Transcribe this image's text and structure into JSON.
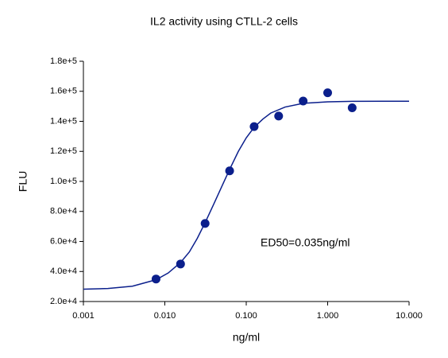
{
  "chart_data": {
    "type": "scatter",
    "title": "IL2 activity using CTLL-2 cells",
    "x_label": "ng/ml",
    "y_label": "FLU",
    "annotation": "ED50=0.035ng/ml",
    "xscale": "log",
    "xlim": [
      0.001,
      10
    ],
    "ylim": [
      20000,
      180000
    ],
    "xticks": [
      0.001,
      {
        "value": 0.01,
        "label": "0.010"
      },
      {
        "value": 0.1,
        "label": "0.100"
      },
      {
        "value": 1,
        "label": "1.000"
      },
      {
        "value": 10,
        "label": "10.000"
      }
    ],
    "yticks": [
      {
        "value": 20000,
        "label": "2.0e+4"
      },
      {
        "value": 40000,
        "label": "4.0e+4"
      },
      {
        "value": 60000,
        "label": "6.0e+4"
      },
      {
        "value": 80000,
        "label": "8.0e+4"
      },
      {
        "value": 100000,
        "label": "1.0e+5"
      },
      {
        "value": 120000,
        "label": "1.2e+5"
      },
      {
        "value": 140000,
        "label": "1.4e+5"
      },
      {
        "value": 160000,
        "label": "1.6e+5"
      },
      {
        "value": 180000,
        "label": "1.8e+5"
      }
    ],
    "series": [
      {
        "mode": "markers",
        "color": "#0b1f8c",
        "x": [
          0.0078,
          0.0156,
          0.03125,
          0.0625,
          0.125,
          0.25,
          0.5,
          1,
          2
        ],
        "values": [
          35000,
          45000,
          72000,
          107000,
          136500,
          143500,
          153500,
          159000,
          149000
        ]
      },
      {
        "mode": "line",
        "color": "#0b1f8c",
        "x": [
          0.001,
          0.002,
          0.004,
          0.0078,
          0.011,
          0.0156,
          0.02,
          0.025,
          0.03125,
          0.04,
          0.05,
          0.0625,
          0.08,
          0.1,
          0.125,
          0.16,
          0.2,
          0.3,
          0.5,
          1,
          2,
          5,
          10
        ],
        "values": [
          28200,
          28700,
          30200,
          34500,
          39000,
          46000,
          53000,
          62000,
          72500,
          85000,
          96500,
          108000,
          120000,
          129000,
          136000,
          141500,
          145500,
          149500,
          152000,
          153000,
          153300,
          153400,
          153400
        ]
      }
    ]
  }
}
